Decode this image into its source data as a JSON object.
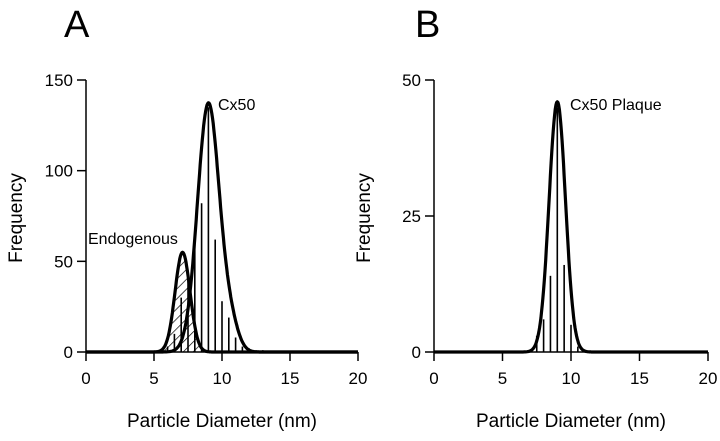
{
  "chart_data": [
    {
      "type": "bar",
      "panel_label": "A",
      "xlabel": "Particle Diameter (nm)",
      "ylabel": "Frequency",
      "xlim": [
        0,
        20
      ],
      "ylim": [
        0,
        150
      ],
      "xticks": [
        0,
        5,
        10,
        15,
        20
      ],
      "yticks": [
        0,
        50,
        100,
        150
      ],
      "grid": false,
      "bars": {
        "x": [
          6.0,
          6.5,
          7.0,
          7.5,
          8.0,
          8.5,
          9.0,
          9.5,
          10.0,
          10.5,
          11.0,
          11.5,
          12.0,
          12.5,
          13.0
        ],
        "values": [
          3,
          10,
          30,
          45,
          60,
          82,
          135,
          62,
          28,
          19,
          8,
          3,
          2,
          1,
          1
        ]
      },
      "curves": [
        {
          "name": "Cx50",
          "peak_x": 9.0,
          "peak_y": 137,
          "sd": 0.8,
          "shoulder_x": 10.6,
          "shoulder_y": 14,
          "shoulder_sd": 0.6
        },
        {
          "name": "Endogenous",
          "peak_x": 7.1,
          "peak_y": 55,
          "sd": 0.55,
          "hatched": true
        }
      ]
    },
    {
      "type": "bar",
      "panel_label": "B",
      "xlabel": "Particle Diameter (nm)",
      "ylabel": "Frequency",
      "xlim": [
        0,
        20
      ],
      "ylim": [
        0,
        50
      ],
      "xticks": [
        0,
        5,
        10,
        15,
        20
      ],
      "yticks": [
        0,
        25,
        50
      ],
      "grid": false,
      "bars": {
        "x": [
          7.5,
          8.0,
          8.5,
          9.0,
          9.5,
          10.0,
          10.5
        ],
        "values": [
          3,
          6,
          14,
          45,
          16,
          5,
          1
        ]
      },
      "curves": [
        {
          "name": "Cx50 Plaque",
          "peak_x": 9.0,
          "peak_y": 46,
          "sd": 0.6
        }
      ]
    }
  ]
}
